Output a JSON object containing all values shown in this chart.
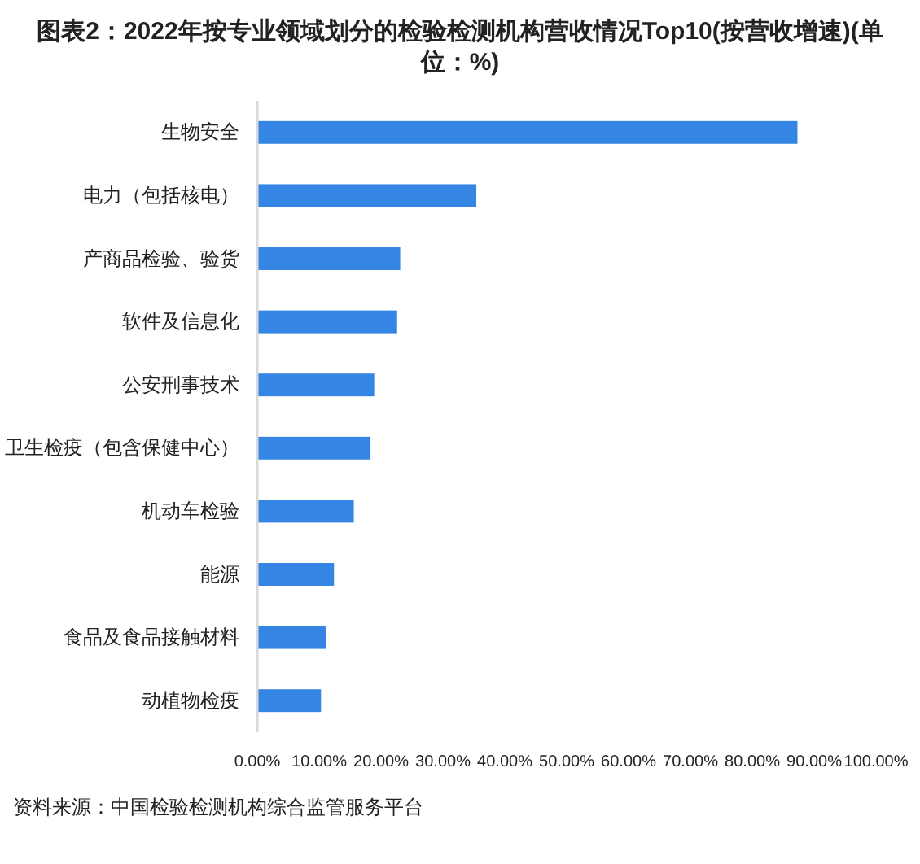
{
  "chart_data": {
    "type": "bar",
    "orientation": "horizontal",
    "title": "图表2：2022年按专业领域划分的检验检测机构营收情况Top10(按营收增速)(单位：%)",
    "categories": [
      "生物安全",
      "电力（包括核电）",
      "产商品检验、验货",
      "软件及信息化",
      "公安刑事技术",
      "卫生检疫（包含保健中心）",
      "机动车检验",
      "能源",
      "食品及食品接触材料",
      "动植物检疫"
    ],
    "values": [
      87.3,
      35.4,
      23.1,
      22.6,
      18.9,
      18.3,
      15.6,
      12.4,
      11.1,
      10.3
    ],
    "color": "#3585e5",
    "xlim": [
      0,
      100
    ],
    "xticks": [
      {
        "value": 0,
        "label": "0.00%"
      },
      {
        "value": 10,
        "label": "10.00%"
      },
      {
        "value": 20,
        "label": "20.00%"
      },
      {
        "value": 30,
        "label": "30.00%"
      },
      {
        "value": 40,
        "label": "40.00%"
      },
      {
        "value": 50,
        "label": "50.00%"
      },
      {
        "value": 60,
        "label": "60.00%"
      },
      {
        "value": 70,
        "label": "70.00%"
      },
      {
        "value": 80,
        "label": "80.00%"
      },
      {
        "value": 90,
        "label": "90.00%"
      },
      {
        "value": 100,
        "label": "100.00%"
      }
    ],
    "annotations": [
      "资料来源：中国检验检测机构综合监管服务平台"
    ]
  }
}
